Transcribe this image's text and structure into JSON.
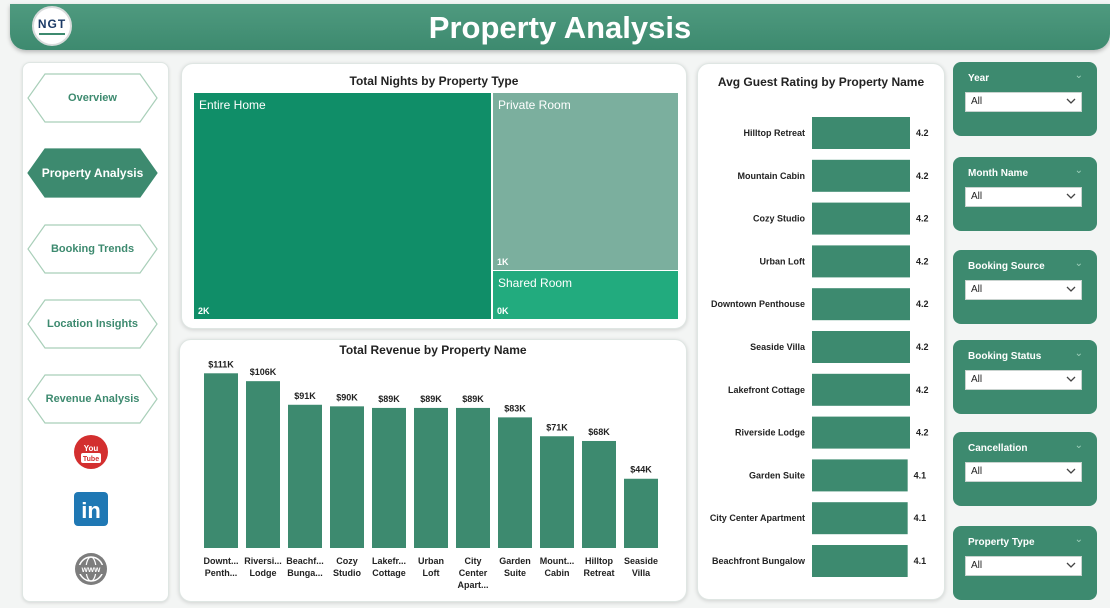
{
  "header": {
    "title": "Property Analysis",
    "logo_text": "NGT"
  },
  "sidebar": {
    "items": [
      {
        "label": "Overview",
        "active": false
      },
      {
        "label": "Property Analysis",
        "active": true
      },
      {
        "label": "Booking Trends",
        "active": false
      },
      {
        "label": "Location Insights",
        "active": false
      },
      {
        "label": "Revenue Analysis",
        "active": false
      }
    ],
    "social": [
      {
        "icon": "youtube-icon",
        "text": "You Tube"
      },
      {
        "icon": "linkedin-icon",
        "text": "in"
      },
      {
        "icon": "web-icon",
        "text": "www"
      }
    ]
  },
  "colors": {
    "accent": "#3d8a6f",
    "treemap_entire": "#108e68",
    "treemap_private": "#7baf9e",
    "treemap_shared": "#22ab7e"
  },
  "treemap": {
    "title": "Total Nights by Property Type",
    "items": [
      {
        "label": "Entire Home",
        "value_label": "2K"
      },
      {
        "label": "Private Room",
        "value_label": "1K"
      },
      {
        "label": "Shared Room",
        "value_label": "0K"
      }
    ]
  },
  "chart_data": [
    {
      "type": "bar",
      "title": "Total Revenue by Property Name",
      "categories": [
        "Downt... Penth...",
        "Riversi... Lodge",
        "Beachf... Bunga...",
        "Cozy Studio",
        "Lakefr... Cottage",
        "Urban Loft",
        "City Center Apart...",
        "Garden Suite",
        "Mount... Cabin",
        "Hilltop Retreat",
        "Seaside Villa"
      ],
      "values": [
        111,
        106,
        91,
        90,
        89,
        89,
        89,
        83,
        71,
        68,
        44
      ],
      "data_labels": [
        "$111K",
        "$106K",
        "$91K",
        "$90K",
        "$89K",
        "$89K",
        "$89K",
        "$83K",
        "$71K",
        "$68K",
        "$44K"
      ],
      "ylim": [
        0,
        115
      ],
      "color": "#3d8a6f"
    },
    {
      "type": "bar",
      "orientation": "horizontal",
      "title": "Avg Guest Rating by Property Name",
      "categories": [
        "Hilltop Retreat",
        "Mountain Cabin",
        "Cozy Studio",
        "Urban Loft",
        "Downtown Penthouse",
        "Seaside Villa",
        "Lakefront Cottage",
        "Riverside Lodge",
        "Garden Suite",
        "City Center Apartment",
        "Beachfront Bungalow"
      ],
      "values": [
        4.2,
        4.2,
        4.2,
        4.2,
        4.2,
        4.2,
        4.2,
        4.2,
        4.1,
        4.1,
        4.1
      ],
      "data_labels": [
        "4.2",
        "4.2",
        "4.2",
        "4.2",
        "4.2",
        "4.2",
        "4.2",
        "4.2",
        "4.1",
        "4.1",
        "4.1"
      ],
      "color": "#3d8a6f"
    }
  ],
  "slicers": [
    {
      "label": "Year",
      "value": "All"
    },
    {
      "label": "Month Name",
      "value": "All"
    },
    {
      "label": "Booking Source",
      "value": "All"
    },
    {
      "label": "Booking Status",
      "value": "All"
    },
    {
      "label": "Cancellation",
      "value": "All"
    },
    {
      "label": "Property Type",
      "value": "All"
    }
  ]
}
